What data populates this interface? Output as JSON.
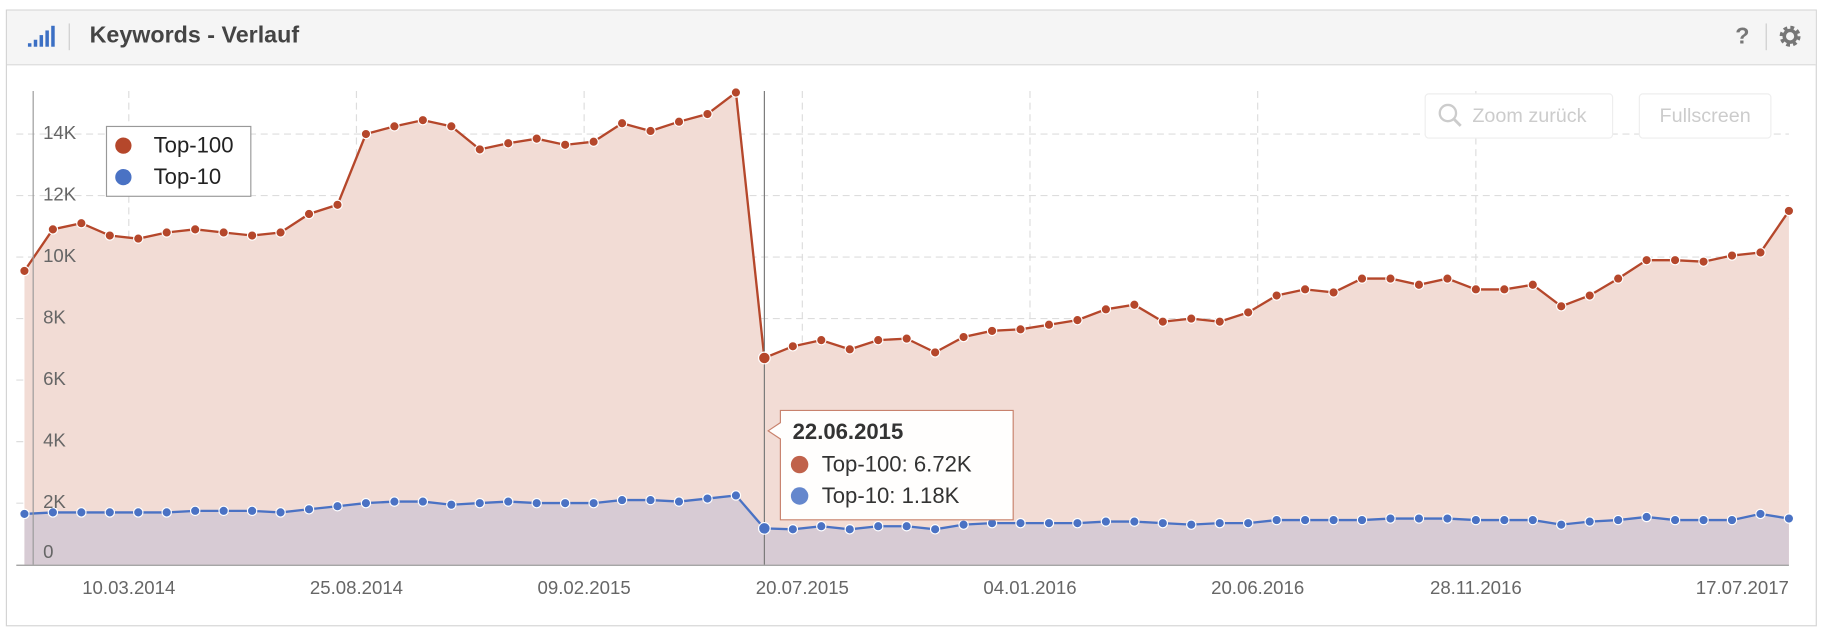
{
  "ui": {
    "title": "Keywords - Verlauf",
    "help": "?",
    "buttons": [
      "Zoom zurück",
      "Fullscreen"
    ]
  },
  "chart_data": {
    "type": "area",
    "x": [
      "23.12.2013",
      "13.01.2014",
      "03.02.2014",
      "24.02.2014",
      "17.03.2014",
      "07.04.2014",
      "28.04.2014",
      "19.05.2014",
      "09.06.2014",
      "30.06.2014",
      "21.07.2014",
      "11.08.2014",
      "01.09.2014",
      "22.09.2014",
      "13.10.2014",
      "03.11.2014",
      "24.11.2014",
      "15.12.2014",
      "05.01.2015",
      "26.01.2015",
      "16.02.2015",
      "09.03.2015",
      "30.03.2015",
      "20.04.2015",
      "11.05.2015",
      "01.06.2015",
      "22.06.2015",
      "13.07.2015",
      "03.08.2015",
      "24.08.2015",
      "14.09.2015",
      "05.10.2015",
      "26.10.2015",
      "16.11.2015",
      "07.12.2015",
      "28.12.2015",
      "18.01.2016",
      "08.02.2016",
      "29.02.2016",
      "21.03.2016",
      "11.04.2016",
      "02.05.2016",
      "23.05.2016",
      "13.06.2016",
      "04.07.2016",
      "25.07.2016",
      "15.08.2016",
      "05.09.2016",
      "26.09.2016",
      "17.10.2016",
      "07.11.2016",
      "28.11.2016",
      "19.12.2016",
      "09.01.2017",
      "30.01.2017",
      "20.02.2017",
      "13.03.2017",
      "03.04.2017",
      "24.04.2017",
      "15.05.2017",
      "05.06.2017",
      "26.06.2017",
      "17.07.2017"
    ],
    "series": [
      {
        "name": "Top-100",
        "color": "#b5472b",
        "fill": "#f2dcd5",
        "values": [
          9550,
          10900,
          11100,
          10700,
          10600,
          10800,
          10900,
          10800,
          10700,
          10800,
          11400,
          11700,
          14000,
          14250,
          14450,
          14250,
          13500,
          13700,
          13850,
          13650,
          13750,
          14350,
          14100,
          14400,
          14650,
          15350,
          6720,
          7100,
          7300,
          7000,
          7300,
          7350,
          6900,
          7400,
          7600,
          7650,
          7800,
          7950,
          8300,
          8450,
          7900,
          8000,
          7900,
          8200,
          8750,
          8950,
          8850,
          9300,
          9300,
          9100,
          9300,
          8950,
          8950,
          9100,
          8400,
          8750,
          9300,
          9900,
          9900,
          9850,
          10050,
          10150,
          11500
        ]
      },
      {
        "name": "Top-10",
        "color": "#4a72c4",
        "fill": "#d2c8d3",
        "values": [
          1650,
          1700,
          1700,
          1700,
          1700,
          1700,
          1750,
          1750,
          1750,
          1700,
          1800,
          1900,
          2000,
          2050,
          2050,
          1950,
          2000,
          2050,
          2000,
          2000,
          2000,
          2100,
          2100,
          2050,
          2150,
          2250,
          1180,
          1150,
          1250,
          1150,
          1250,
          1250,
          1150,
          1300,
          1350,
          1350,
          1350,
          1350,
          1400,
          1400,
          1350,
          1300,
          1350,
          1350,
          1450,
          1450,
          1450,
          1450,
          1500,
          1500,
          1500,
          1450,
          1450,
          1450,
          1300,
          1400,
          1450,
          1550,
          1450,
          1450,
          1450,
          1650,
          1500
        ]
      }
    ],
    "xlim": [
      "17.12.2013",
      "17.07.2017"
    ],
    "xticks": [
      "10.03.2014",
      "25.08.2014",
      "09.02.2015",
      "20.07.2015",
      "04.01.2016",
      "20.06.2016",
      "28.11.2016",
      "17.07.2017"
    ],
    "ylim": [
      0,
      15400
    ],
    "yticks": [
      0,
      {
        "value": 2000,
        "label": "2K"
      },
      {
        "value": 4000,
        "label": "4K"
      },
      {
        "value": 6000,
        "label": "6K"
      },
      {
        "value": 8000,
        "label": "8K"
      },
      {
        "value": 10000,
        "label": "10K"
      },
      {
        "value": 12000,
        "label": "12K"
      },
      {
        "value": 14000,
        "label": "14K"
      }
    ],
    "grid": true,
    "legend": "top-left",
    "tooltip": {
      "title": "22.06.2015",
      "lines": [
        "Top-100: 6.72K",
        "Top-10: 1.18K"
      ]
    }
  }
}
